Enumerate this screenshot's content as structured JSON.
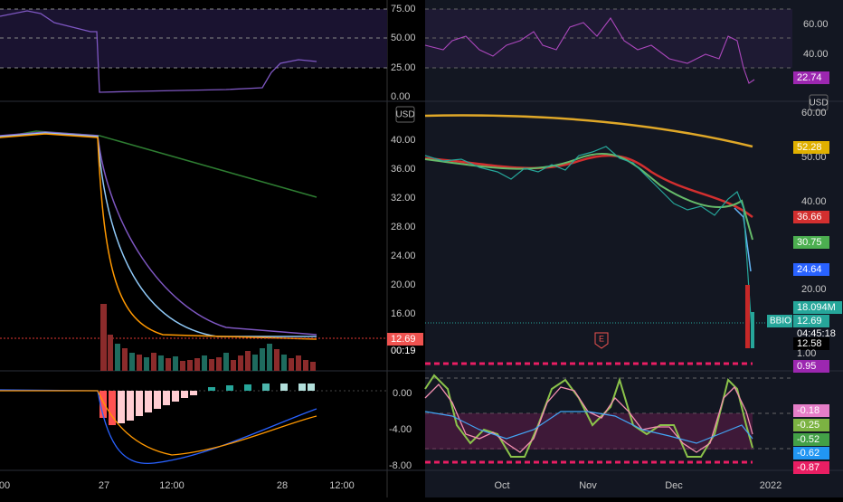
{
  "left_panel": {
    "rsi_axis": [
      "75.00",
      "50.00",
      "25.00",
      "0.00"
    ],
    "currency": "USD",
    "price_axis": [
      "40.00",
      "36.00",
      "32.00",
      "28.00",
      "24.00",
      "20.00",
      "16.00"
    ],
    "price_badge": "12.69",
    "countdown": "00:19",
    "macd_axis": [
      "0.00",
      "-4.00",
      "-8.00"
    ],
    "time_axis": [
      "00",
      "27",
      "12:00",
      "28",
      "12:00"
    ]
  },
  "right_panel": {
    "rsi_axis": [
      "60.00",
      "40.00"
    ],
    "rsi_badge": {
      "text": "22.74",
      "color": "#9c27b0"
    },
    "currency": "USD",
    "price_axis": [
      "60.00",
      "50.00",
      "40.00",
      "20.00"
    ],
    "badges": [
      {
        "text": "52.28",
        "color": "#e0b000"
      },
      {
        "text": "36.66",
        "color": "#d32f2f"
      },
      {
        "text": "30.75",
        "color": "#4caf50"
      },
      {
        "text": "24.64",
        "color": "#2962ff"
      },
      {
        "text": "18.094M",
        "color": "#26a69a"
      },
      {
        "text": "12.69",
        "color": "#26a69a"
      },
      {
        "text": "12.58",
        "color": "#000000"
      },
      {
        "text": "0.95",
        "color": "#9c27b0"
      },
      {
        "text": "-0.18",
        "color": "#e57ec8"
      },
      {
        "text": "-0.25",
        "color": "#7cb342"
      },
      {
        "text": "-0.52",
        "color": "#43a047"
      },
      {
        "text": "-0.62",
        "color": "#2196f3"
      },
      {
        "text": "-0.87",
        "color": "#e91e63"
      }
    ],
    "countdown": "04:45:18",
    "level": "1.00",
    "symbol": "BBIO",
    "earnings": "E",
    "time_axis": [
      "Oct",
      "Nov",
      "Dec",
      "2022"
    ]
  }
}
